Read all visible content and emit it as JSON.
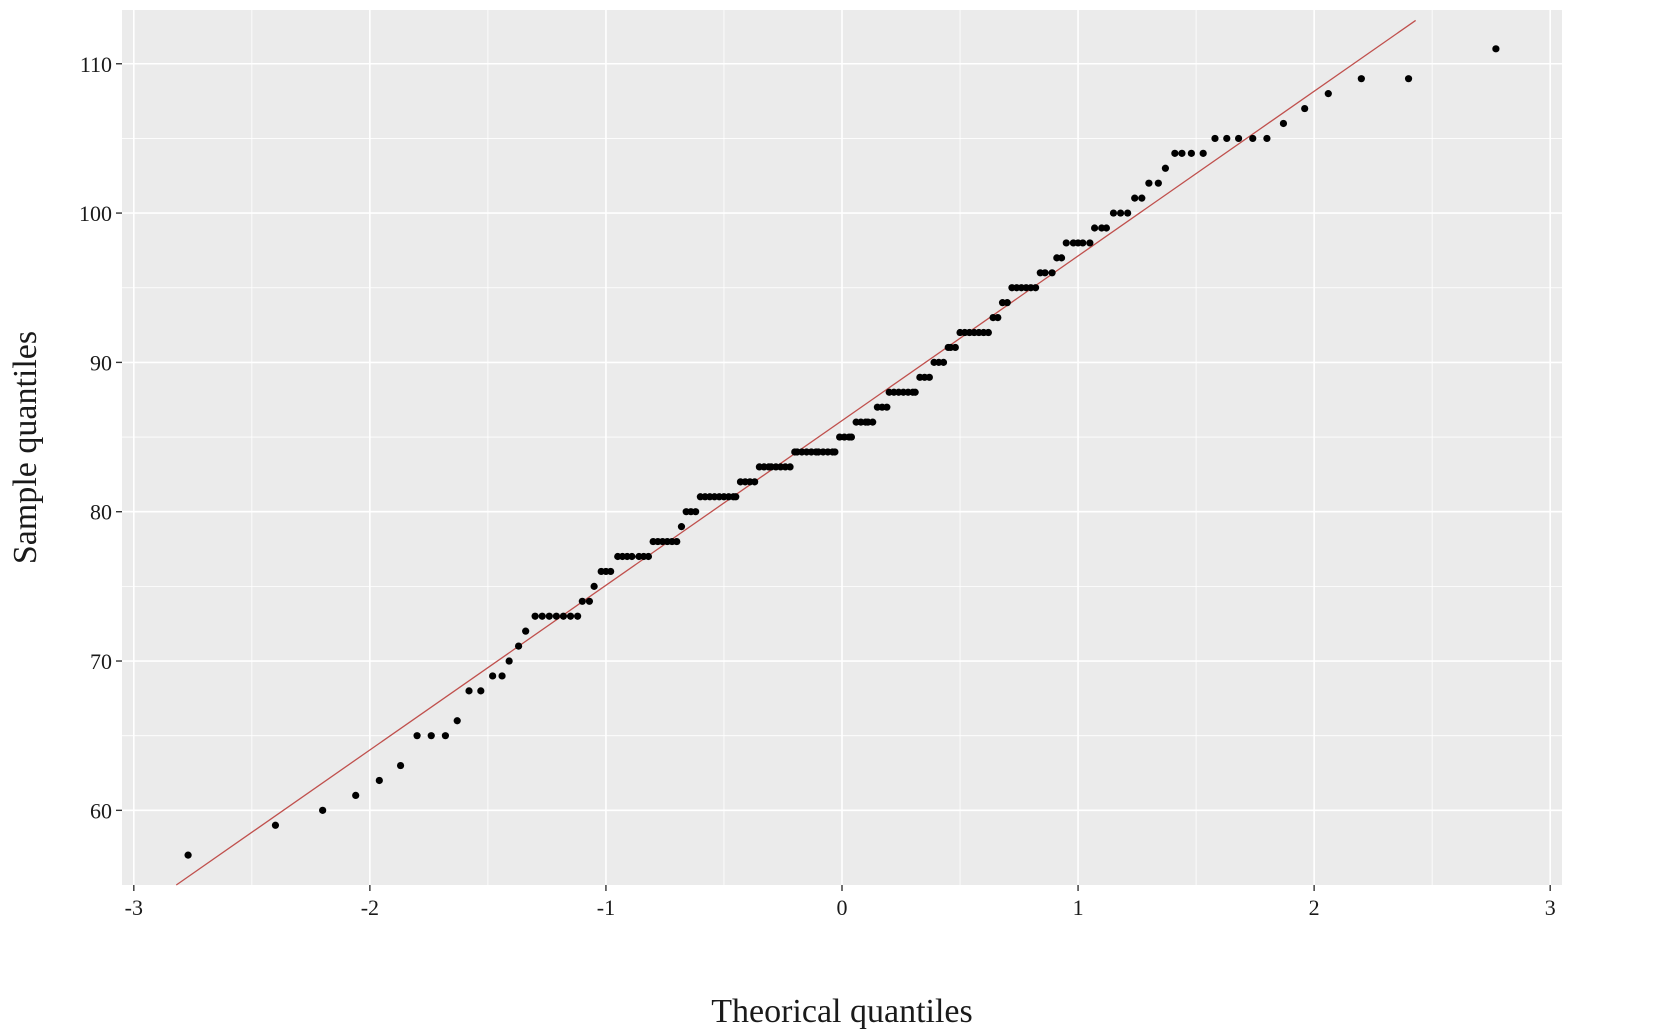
{
  "chart_data": {
    "type": "scatter",
    "title": "",
    "xlabel": "Theorical quantiles",
    "ylabel": "Sample quantiles",
    "xlim": [
      -3.05,
      3.05
    ],
    "ylim": [
      55,
      113.6
    ],
    "x_ticks": [
      -3,
      -2,
      -1,
      0,
      1,
      2,
      3
    ],
    "y_ticks": [
      60,
      70,
      80,
      90,
      100,
      110
    ],
    "x_tick_labels": [
      "-3",
      "-2",
      "-1",
      "0",
      "1",
      "2",
      "3"
    ],
    "y_tick_labels": [
      "60",
      "70",
      "80",
      "90",
      "100",
      "110"
    ],
    "grid": true,
    "legend": "none",
    "colors": {
      "panel_background": "#ebebeb",
      "grid": "#ffffff",
      "points": "#000000",
      "reference_line": "#c0504d"
    },
    "reference_line": {
      "x": [
        -2.82,
        2.43
      ],
      "y": [
        55.0,
        112.9
      ]
    },
    "points": [
      [
        -2.77,
        57
      ],
      [
        -2.4,
        59
      ],
      [
        -2.2,
        60
      ],
      [
        -2.06,
        61
      ],
      [
        -1.96,
        62
      ],
      [
        -1.87,
        63
      ],
      [
        -1.8,
        65
      ],
      [
        -1.74,
        65
      ],
      [
        -1.68,
        65
      ],
      [
        -1.63,
        66
      ],
      [
        -1.58,
        68
      ],
      [
        -1.53,
        68
      ],
      [
        -1.48,
        69
      ],
      [
        -1.44,
        69
      ],
      [
        -1.41,
        70
      ],
      [
        -1.37,
        71
      ],
      [
        -1.34,
        72
      ],
      [
        -1.3,
        73
      ],
      [
        -1.27,
        73
      ],
      [
        -1.24,
        73
      ],
      [
        -1.21,
        73
      ],
      [
        -1.18,
        73
      ],
      [
        -1.15,
        73
      ],
      [
        -1.12,
        73
      ],
      [
        -1.1,
        74
      ],
      [
        -1.07,
        74
      ],
      [
        -1.05,
        75
      ],
      [
        -1.02,
        76
      ],
      [
        -1.0,
        76
      ],
      [
        -0.98,
        76
      ],
      [
        -0.95,
        77
      ],
      [
        -0.93,
        77
      ],
      [
        -0.91,
        77
      ],
      [
        -0.89,
        77
      ],
      [
        -0.86,
        77
      ],
      [
        -0.84,
        77
      ],
      [
        -0.82,
        77
      ],
      [
        -0.8,
        78
      ],
      [
        -0.78,
        78
      ],
      [
        -0.76,
        78
      ],
      [
        -0.74,
        78
      ],
      [
        -0.72,
        78
      ],
      [
        -0.7,
        78
      ],
      [
        -0.68,
        79
      ],
      [
        -0.66,
        80
      ],
      [
        -0.64,
        80
      ],
      [
        -0.62,
        80
      ],
      [
        -0.6,
        81
      ],
      [
        -0.58,
        81
      ],
      [
        -0.56,
        81
      ],
      [
        -0.54,
        81
      ],
      [
        -0.52,
        81
      ],
      [
        -0.5,
        81
      ],
      [
        -0.48,
        81
      ],
      [
        -0.46,
        81
      ],
      [
        -0.45,
        81
      ],
      [
        -0.43,
        82
      ],
      [
        -0.41,
        82
      ],
      [
        -0.39,
        82
      ],
      [
        -0.37,
        82
      ],
      [
        -0.35,
        83
      ],
      [
        -0.33,
        83
      ],
      [
        -0.31,
        83
      ],
      [
        -0.3,
        83
      ],
      [
        -0.28,
        83
      ],
      [
        -0.26,
        83
      ],
      [
        -0.24,
        83
      ],
      [
        -0.22,
        83
      ],
      [
        -0.2,
        84
      ],
      [
        -0.19,
        84
      ],
      [
        -0.17,
        84
      ],
      [
        -0.15,
        84
      ],
      [
        -0.13,
        84
      ],
      [
        -0.11,
        84
      ],
      [
        -0.1,
        84
      ],
      [
        -0.08,
        84
      ],
      [
        -0.06,
        84
      ],
      [
        -0.04,
        84
      ],
      [
        -0.03,
        84
      ],
      [
        -0.01,
        85
      ],
      [
        0.01,
        85
      ],
      [
        0.03,
        85
      ],
      [
        0.04,
        85
      ],
      [
        0.06,
        86
      ],
      [
        0.08,
        86
      ],
      [
        0.1,
        86
      ],
      [
        0.11,
        86
      ],
      [
        0.13,
        86
      ],
      [
        0.15,
        87
      ],
      [
        0.17,
        87
      ],
      [
        0.19,
        87
      ],
      [
        0.2,
        88
      ],
      [
        0.22,
        88
      ],
      [
        0.24,
        88
      ],
      [
        0.26,
        88
      ],
      [
        0.28,
        88
      ],
      [
        0.3,
        88
      ],
      [
        0.31,
        88
      ],
      [
        0.33,
        89
      ],
      [
        0.35,
        89
      ],
      [
        0.37,
        89
      ],
      [
        0.39,
        90
      ],
      [
        0.41,
        90
      ],
      [
        0.43,
        90
      ],
      [
        0.45,
        91
      ],
      [
        0.46,
        91
      ],
      [
        0.48,
        91
      ],
      [
        0.5,
        92
      ],
      [
        0.52,
        92
      ],
      [
        0.54,
        92
      ],
      [
        0.56,
        92
      ],
      [
        0.58,
        92
      ],
      [
        0.6,
        92
      ],
      [
        0.62,
        92
      ],
      [
        0.64,
        93
      ],
      [
        0.66,
        93
      ],
      [
        0.68,
        94
      ],
      [
        0.7,
        94
      ],
      [
        0.72,
        95
      ],
      [
        0.74,
        95
      ],
      [
        0.76,
        95
      ],
      [
        0.78,
        95
      ],
      [
        0.8,
        95
      ],
      [
        0.82,
        95
      ],
      [
        0.84,
        96
      ],
      [
        0.86,
        96
      ],
      [
        0.89,
        96
      ],
      [
        0.91,
        97
      ],
      [
        0.93,
        97
      ],
      [
        0.95,
        98
      ],
      [
        0.98,
        98
      ],
      [
        1.0,
        98
      ],
      [
        1.02,
        98
      ],
      [
        1.05,
        98
      ],
      [
        1.07,
        99
      ],
      [
        1.1,
        99
      ],
      [
        1.12,
        99
      ],
      [
        1.15,
        100
      ],
      [
        1.18,
        100
      ],
      [
        1.21,
        100
      ],
      [
        1.24,
        101
      ],
      [
        1.27,
        101
      ],
      [
        1.3,
        102
      ],
      [
        1.34,
        102
      ],
      [
        1.37,
        103
      ],
      [
        1.41,
        104
      ],
      [
        1.44,
        104
      ],
      [
        1.48,
        104
      ],
      [
        1.53,
        104
      ],
      [
        1.58,
        105
      ],
      [
        1.63,
        105
      ],
      [
        1.68,
        105
      ],
      [
        1.74,
        105
      ],
      [
        1.8,
        105
      ],
      [
        1.87,
        106
      ],
      [
        1.96,
        107
      ],
      [
        2.06,
        108
      ],
      [
        2.2,
        109
      ],
      [
        2.4,
        109
      ],
      [
        2.77,
        111
      ]
    ]
  }
}
